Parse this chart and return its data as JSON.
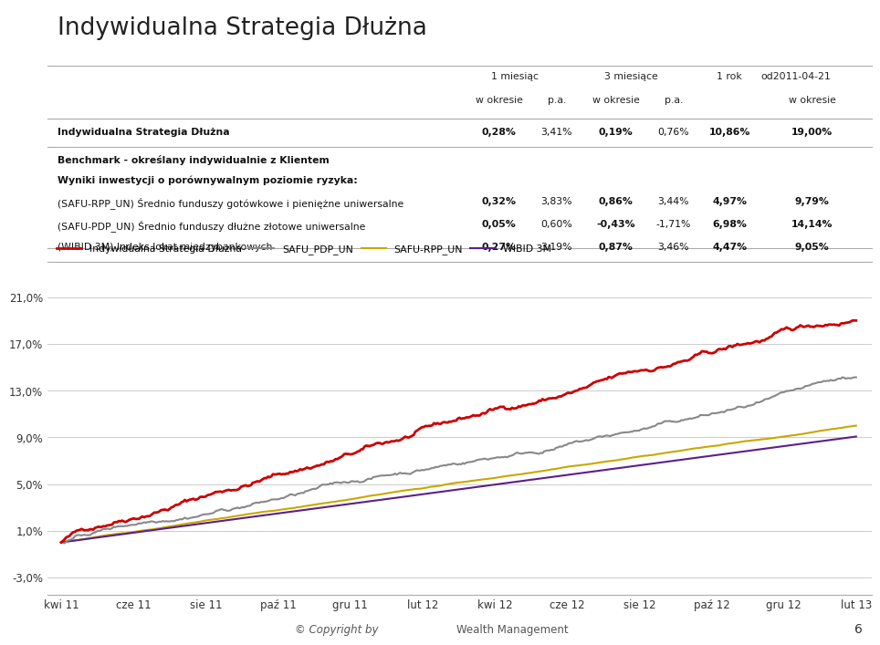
{
  "title": "Indywidualna Strategia Dłużna",
  "table_rows": [
    {
      "label": "Indywidualna Strategia Dłużna",
      "values": [
        "0,28%",
        "3,41%",
        "0,19%",
        "0,76%",
        "10,86%",
        "19,00%"
      ],
      "bold": true,
      "separator": true
    },
    {
      "label": "Benchmark - określany indywidualnie z Klientem",
      "values": [
        "",
        "",
        "",
        "",
        "",
        ""
      ],
      "bold": true,
      "separator": false
    },
    {
      "label": "Wyniki inwestycji o porównywalnym poziomie ryzyka:",
      "values": [
        "",
        "",
        "",
        "",
        "",
        ""
      ],
      "bold": true,
      "separator": false
    },
    {
      "label": "(SAFU-RPP_UN) Średnio funduszy gotówkowe i pieniężne uniwersalne",
      "values": [
        "0,32%",
        "3,83%",
        "0,86%",
        "3,44%",
        "4,97%",
        "9,79%"
      ],
      "bold": false,
      "separator": false
    },
    {
      "label": "(SAFU-PDP_UN) Średnio funduszy dłużne złotowe uniwersalne",
      "values": [
        "0,05%",
        "0,60%",
        "-0,43%",
        "-1,71%",
        "6,98%",
        "14,14%"
      ],
      "bold": false,
      "separator": false
    },
    {
      "label": "(WIBID 3M) Indeks lokat międzybankowych",
      "values": [
        "0,27%",
        "3,19%",
        "0,87%",
        "3,46%",
        "4,47%",
        "9,05%"
      ],
      "bold": false,
      "separator": true
    }
  ],
  "legend": [
    {
      "label": "Indywidualna Strategia Dłużna",
      "color": "#cc0000",
      "lw": 2.0
    },
    {
      "label": "SAFU_PDP_UN",
      "color": "#888888",
      "lw": 1.5
    },
    {
      "label": "SAFU-RPP_UN",
      "color": "#c8a800",
      "lw": 1.5
    },
    {
      "label": "WIBID 3M",
      "color": "#5b1f8a",
      "lw": 1.5
    }
  ],
  "x_labels": [
    "kwi 11",
    "cze 11",
    "sie 11",
    "paź 11",
    "gru 11",
    "lut 12",
    "kwi 12",
    "cze 12",
    "sie 12",
    "paź 12",
    "gru 12",
    "lut 13"
  ],
  "yticks": [
    "-3,0%",
    "1,0%",
    "5,0%",
    "9,0%",
    "13,0%",
    "17,0%",
    "21,0%"
  ],
  "ytick_values": [
    -3.0,
    1.0,
    5.0,
    9.0,
    13.0,
    17.0,
    21.0
  ],
  "ylim": [
    -4.5,
    23.5
  ],
  "background_color": "#ffffff",
  "grid_color": "#cccccc"
}
